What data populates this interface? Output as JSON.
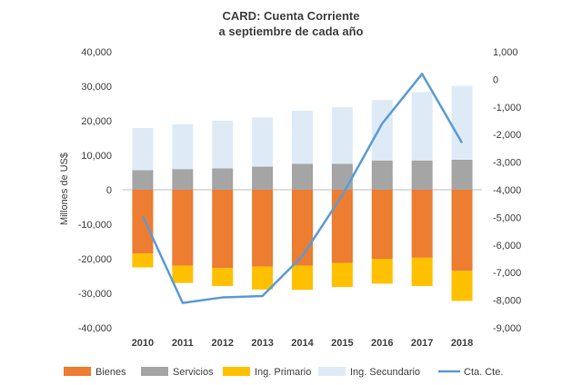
{
  "chart_data": {
    "type": "bar",
    "title": "CARD: Cuenta Corriente",
    "subtitle": "a septiembre de cada año",
    "ylabel": "Millones de US$",
    "categories": [
      "2010",
      "2011",
      "2012",
      "2013",
      "2014",
      "2015",
      "2016",
      "2017",
      "2018"
    ],
    "ylim": [
      -40000,
      40000
    ],
    "y_ticks": [
      "40,000",
      "30,000",
      "20,000",
      "10,000",
      "0",
      "-10,000",
      "-20,000",
      "-30,000",
      "-40,000"
    ],
    "y2lim": [
      -9000,
      1000
    ],
    "y2_ticks": [
      "1,000",
      "0",
      "-1,000",
      "-2,000",
      "-3,000",
      "-4,000",
      "-5,000",
      "-6,000",
      "-7,000",
      "-8,000",
      "-9,000"
    ],
    "legend_position": "bottom",
    "series": [
      {
        "name": "Bienes",
        "type": "stacked-bar",
        "color": "#ED7D31",
        "values": [
          -18500,
          -22000,
          -22700,
          -22300,
          -22000,
          -21200,
          -20000,
          -19700,
          -23500
        ]
      },
      {
        "name": "Servicios",
        "type": "stacked-bar",
        "color": "#A5A5A5",
        "values": [
          5700,
          6000,
          6200,
          6700,
          7500,
          7500,
          8500,
          8500,
          8700
        ]
      },
      {
        "name": "Ing. Primario",
        "type": "stacked-bar",
        "color": "#FFC000",
        "values": [
          -4000,
          -5000,
          -5200,
          -6600,
          -7000,
          -7000,
          -7200,
          -8200,
          -8700
        ]
      },
      {
        "name": "Ing. Secundario",
        "type": "stacked-bar",
        "color": "#DEEBF7",
        "values": [
          12200,
          13000,
          13800,
          14300,
          15400,
          16400,
          17500,
          19800,
          21400
        ]
      },
      {
        "name": "Cta. Cte.",
        "type": "line",
        "axis": "right",
        "color": "#5B9BD5",
        "values": [
          -4950,
          -8100,
          -7900,
          -7850,
          -6400,
          -4200,
          -1600,
          200,
          -2300
        ]
      }
    ]
  }
}
